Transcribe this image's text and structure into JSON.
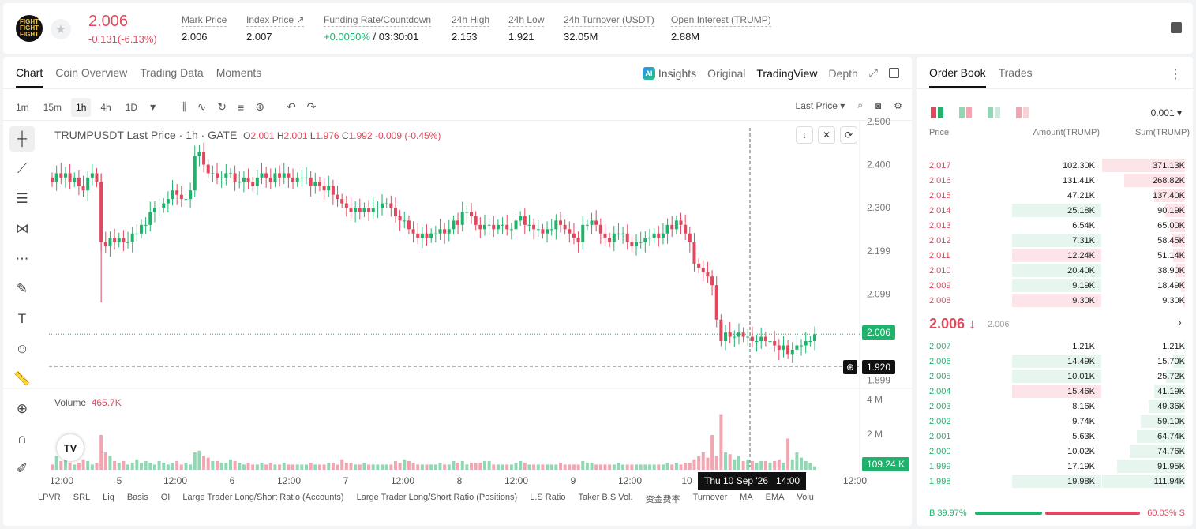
{
  "header": {
    "logo_text": "FIGHT FIGHT FIGHT",
    "price": "2.006",
    "change": "-0.131(-6.13%)",
    "stats": [
      {
        "label": "Mark Price",
        "value": "2.006"
      },
      {
        "label": "Index Price ↗",
        "value": "2.007"
      },
      {
        "label": "Funding Rate/Countdown",
        "value_green": "+0.0050%",
        "value": " / 03:30:01"
      },
      {
        "label": "24h High",
        "value": "2.153"
      },
      {
        "label": "24h Low",
        "value": "1.921"
      },
      {
        "label": "24h Turnover (USDT)",
        "value": "32.05M"
      },
      {
        "label": "Open Interest (TRUMP)",
        "value": "2.88M"
      }
    ]
  },
  "chart_tabs": [
    "Chart",
    "Coin Overview",
    "Trading Data",
    "Moments"
  ],
  "view_tabs": {
    "insights": "Insights",
    "original": "Original",
    "tradingview": "TradingView",
    "depth": "Depth"
  },
  "timeframes": [
    "1m",
    "15m",
    "1h",
    "4h",
    "1D"
  ],
  "price_type": "Last Price",
  "legend": {
    "symbol": "TRUMPUSDT Last Price · 1h · GATE",
    "o": "2.001",
    "h": "2.001",
    "l": "1.976",
    "c": "1.992",
    "chg": "-0.009 (-0.45%)"
  },
  "volume": {
    "label": "Volume",
    "value": "465.7K",
    "tag": "109.24 K"
  },
  "price_tags": {
    "last": "2.006",
    "cross": "1.920"
  },
  "crosshair_time": "Thu 10 Sep '26",
  "crosshair_hour": "14:00",
  "indicators": [
    "LPVR",
    "SRL",
    "Liq",
    "Basis",
    "OI",
    "Large Trader Long/Short Ratio (Accounts)",
    "Large Trader Long/Short Ratio (Positions)",
    "L.S Ratio",
    "Taker B.S Vol.",
    "资金费率",
    "Turnover",
    "MA",
    "EMA",
    "Volu"
  ],
  "chart_data": {
    "type": "candlestick",
    "title": "TRUMPUSDT Last Price · 1h · GATE",
    "y_ticks": [
      "2.500",
      "2.400",
      "2.300",
      "2.199",
      "2.099",
      "1.999",
      "1.899"
    ],
    "vol_ticks": [
      "4 M",
      "2 M"
    ],
    "x_ticks": [
      "12:00",
      "5",
      "12:00",
      "6",
      "12:00",
      "7",
      "12:00",
      "8",
      "12:00",
      "9",
      "12:00",
      "10",
      "12:00"
    ],
    "ylim": [
      1.88,
      2.5
    ],
    "series_close": [
      2.36,
      2.38,
      2.37,
      2.38,
      2.36,
      2.37,
      2.35,
      2.34,
      2.37,
      2.38,
      2.36,
      2.22,
      2.21,
      2.23,
      2.22,
      2.23,
      2.22,
      2.22,
      2.24,
      2.24,
      2.26,
      2.26,
      2.29,
      2.3,
      2.3,
      2.31,
      2.32,
      2.34,
      2.33,
      2.32,
      2.32,
      2.34,
      2.42,
      2.43,
      2.4,
      2.38,
      2.38,
      2.37,
      2.37,
      2.38,
      2.38,
      2.36,
      2.36,
      2.37,
      2.36,
      2.35,
      2.37,
      2.38,
      2.37,
      2.36,
      2.38,
      2.37,
      2.38,
      2.37,
      2.36,
      2.37,
      2.37,
      2.37,
      2.35,
      2.36,
      2.35,
      2.34,
      2.35,
      2.33,
      2.32,
      2.31,
      2.3,
      2.29,
      2.3,
      2.29,
      2.3,
      2.29,
      2.3,
      2.3,
      2.31,
      2.31,
      2.3,
      2.28,
      2.27,
      2.27,
      2.25,
      2.24,
      2.23,
      2.24,
      2.23,
      2.24,
      2.24,
      2.25,
      2.24,
      2.25,
      2.27,
      2.26,
      2.29,
      2.29,
      2.28,
      2.26,
      2.25,
      2.26,
      2.26,
      2.25,
      2.26,
      2.26,
      2.25,
      2.25,
      2.27,
      2.28,
      2.26,
      2.26,
      2.25,
      2.25,
      2.24,
      2.25,
      2.25,
      2.27,
      2.26,
      2.25,
      2.24,
      2.23,
      2.22,
      2.26,
      2.26,
      2.27,
      2.26,
      2.24,
      2.23,
      2.22,
      2.24,
      2.24,
      2.24,
      2.22,
      2.21,
      2.22,
      2.22,
      2.23,
      2.23,
      2.24,
      2.23,
      2.24,
      2.26,
      2.25,
      2.27,
      2.26,
      2.24,
      2.22,
      2.17,
      2.16,
      2.15,
      2.14,
      2.12,
      2.04,
      1.99,
      2.01,
      2.0,
      2.0,
      2.01,
      2.0,
      2.0,
      1.99,
      1.99,
      2.0,
      1.99,
      1.99,
      1.98,
      1.97,
      1.98,
      1.96,
      1.97,
      1.98,
      1.98,
      1.99,
      1.99,
      2.006
    ],
    "series_volume": [
      0.3,
      0.8,
      0.5,
      0.6,
      0.4,
      0.3,
      0.4,
      0.6,
      0.5,
      0.3,
      0.4,
      2.0,
      1.0,
      0.8,
      0.5,
      0.4,
      0.5,
      0.3,
      0.4,
      0.6,
      0.4,
      0.5,
      0.4,
      0.3,
      0.5,
      0.4,
      0.3,
      0.4,
      0.5,
      0.3,
      0.4,
      0.3,
      1.0,
      1.1,
      0.8,
      0.7,
      0.5,
      0.5,
      0.4,
      0.4,
      0.6,
      0.5,
      0.4,
      0.3,
      0.4,
      0.3,
      0.3,
      0.4,
      0.3,
      0.4,
      0.3,
      0.3,
      0.4,
      0.3,
      0.3,
      0.3,
      0.3,
      0.3,
      0.4,
      0.3,
      0.3,
      0.3,
      0.4,
      0.4,
      0.3,
      0.6,
      0.4,
      0.4,
      0.3,
      0.3,
      0.4,
      0.3,
      0.3,
      0.3,
      0.3,
      0.3,
      0.3,
      0.5,
      0.4,
      0.6,
      0.5,
      0.4,
      0.3,
      0.3,
      0.3,
      0.3,
      0.3,
      0.4,
      0.3,
      0.3,
      0.5,
      0.4,
      0.5,
      0.3,
      0.4,
      0.4,
      0.4,
      0.5,
      0.5,
      0.3,
      0.3,
      0.3,
      0.3,
      0.3,
      0.4,
      0.5,
      0.4,
      0.3,
      0.3,
      0.3,
      0.3,
      0.3,
      0.3,
      0.3,
      0.4,
      0.3,
      0.3,
      0.3,
      0.3,
      0.5,
      0.4,
      0.4,
      0.3,
      0.3,
      0.3,
      0.3,
      0.3,
      0.4,
      0.3,
      0.3,
      0.3,
      0.3,
      0.3,
      0.3,
      0.3,
      0.3,
      0.3,
      0.3,
      0.4,
      0.3,
      0.4,
      0.3,
      0.4,
      0.4,
      0.6,
      0.8,
      1.0,
      0.7,
      2.0,
      0.8,
      3.2,
      1.0,
      0.9,
      0.6,
      0.8,
      0.5,
      0.6,
      0.5,
      0.4,
      0.5,
      0.5,
      0.4,
      0.5,
      0.6,
      0.4,
      1.8,
      0.6,
      1.0,
      0.7,
      0.5,
      0.4,
      0.2
    ]
  },
  "orderbook": {
    "tabs": [
      "Order Book",
      "Trades"
    ],
    "precision": "0.001",
    "headers": [
      "Price",
      "Amount(TRUMP)",
      "Sum(TRUMP)"
    ],
    "asks": [
      {
        "p": "2.017",
        "a": "102.30K",
        "s": "371.13K",
        "af": 0,
        "sf": 1.0
      },
      {
        "p": "2.016",
        "a": "131.41K",
        "s": "268.82K",
        "af": 0,
        "sf": 0.73
      },
      {
        "p": "2.015",
        "a": "47.21K",
        "s": "137.40K",
        "af": 0,
        "sf": 0.37
      },
      {
        "p": "2.014",
        "a": "25.18K",
        "s": "90.19K",
        "af": 1,
        "sf": 0.24,
        "ac": "g"
      },
      {
        "p": "2.013",
        "a": "6.54K",
        "s": "65.00K",
        "af": 0,
        "sf": 0.18
      },
      {
        "p": "2.012",
        "a": "7.31K",
        "s": "58.45K",
        "af": 1,
        "sf": 0.16,
        "ac": "g"
      },
      {
        "p": "2.011",
        "a": "12.24K",
        "s": "51.14K",
        "af": 1,
        "sf": 0.14,
        "ac": "r"
      },
      {
        "p": "2.010",
        "a": "20.40K",
        "s": "38.90K",
        "af": 1,
        "sf": 0.1,
        "ac": "g"
      },
      {
        "p": "2.009",
        "a": "9.19K",
        "s": "18.49K",
        "af": 1,
        "sf": 0.05,
        "ac": "g"
      },
      {
        "p": "2.008",
        "a": "9.30K",
        "s": "9.30K",
        "af": 1,
        "sf": 0.02,
        "ac": "r"
      }
    ],
    "mid": {
      "price": "2.006 ↓",
      "mark": "2.006"
    },
    "bids": [
      {
        "p": "2.007",
        "a": "1.21K",
        "s": "1.21K",
        "af": 0,
        "sf": 0.01
      },
      {
        "p": "2.006",
        "a": "14.49K",
        "s": "15.70K",
        "af": 1,
        "sf": 0.14,
        "ac": "g"
      },
      {
        "p": "2.005",
        "a": "10.01K",
        "s": "25.72K",
        "af": 1,
        "sf": 0.23,
        "ac": "g"
      },
      {
        "p": "2.004",
        "a": "15.46K",
        "s": "41.19K",
        "af": 1,
        "sf": 0.37,
        "ac": "r"
      },
      {
        "p": "2.003",
        "a": "8.16K",
        "s": "49.36K",
        "af": 0,
        "sf": 0.44
      },
      {
        "p": "2.002",
        "a": "9.74K",
        "s": "59.10K",
        "af": 0,
        "sf": 0.53
      },
      {
        "p": "2.001",
        "a": "5.63K",
        "s": "64.74K",
        "af": 0,
        "sf": 0.58
      },
      {
        "p": "2.000",
        "a": "10.02K",
        "s": "74.76K",
        "af": 0,
        "sf": 0.67
      },
      {
        "p": "1.999",
        "a": "17.19K",
        "s": "91.95K",
        "af": 0,
        "sf": 0.82
      },
      {
        "p": "1.998",
        "a": "19.98K",
        "s": "111.94K",
        "af": 1,
        "sf": 1.0,
        "ac": "g"
      }
    ],
    "buy_ratio": "B 39.97%",
    "sell_ratio": "60.03% S"
  },
  "colors": {
    "up": "#20b26c",
    "down": "#e2475e",
    "up_vol": "#8fd8b3",
    "down_vol": "#f3a6b2"
  }
}
